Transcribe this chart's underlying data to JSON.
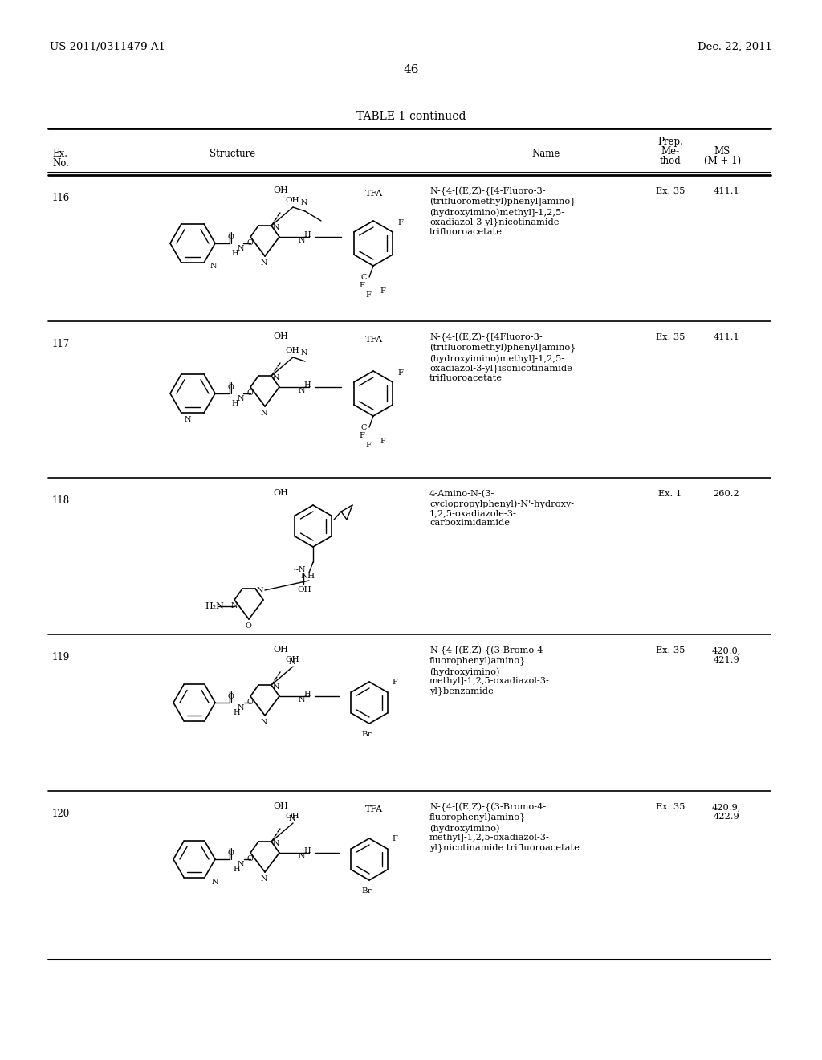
{
  "page_header_left": "US 2011/0311479 A1",
  "page_header_right": "Dec. 22, 2011",
  "page_number": "46",
  "table_title": "TABLE 1-continued",
  "col_headers": {
    "ex_no": "Ex.\nNo.",
    "structure": "Structure",
    "name": "Name",
    "prep_method_line1": "Prep.",
    "prep_method_line2": "Me-",
    "prep_method_line3": "thod",
    "ms_line1": "MS",
    "ms_line2": "(M + 1)"
  },
  "rows": [
    {
      "ex_no": "116",
      "name": "N-{4-[(E,Z)-{[4-Fluoro-3-\n(trifluoromethyl)phenyl]amino}\n(hydroxyimino)methyl]-1,2,5-\noxadiazol-3-yl}nicotinamide\ntrifluoroacetate",
      "tfa_label": "TFA",
      "oh_label": "OH",
      "prep_method": "Ex. 35",
      "ms": "411.1"
    },
    {
      "ex_no": "117",
      "name": "N-{4-[(E,Z)-{[4Fluoro-3-\n(trifluoromethyl)phenyl]amino}\n(hydroxyimino)methyl]-1,2,5-\noxadiazol-3-yl}isonicotinamide\ntrifluoroacetate",
      "tfa_label": "TFA",
      "oh_label": "OH",
      "prep_method": "Ex. 35",
      "ms": "411.1"
    },
    {
      "ex_no": "118",
      "name": "4-Amino-N-(3-\ncyclopropylphenyl)-N'-hydroxy-\n1,2,5-oxadiazole-3-\ncarboximidamide",
      "tfa_label": "",
      "oh_label": "OH",
      "prep_method": "Ex. 1",
      "ms": "260.2"
    },
    {
      "ex_no": "119",
      "name": "N-{4-[(E,Z)-{(3-Bromo-4-\nfluorophenyl)amino}\n(hydroxyimino)\nmethyl]-1,2,5-oxadiazol-3-\nyl}benzamide",
      "tfa_label": "",
      "oh_label": "OH",
      "prep_method": "Ex. 35",
      "ms": "420.0,\n421.9"
    },
    {
      "ex_no": "120",
      "name": "N-{4-[(E,Z)-{(3-Bromo-4-\nfluorophenyl)amino}\n(hydroxyimino)\nmethyl]-1,2,5-oxadiazol-3-\nyl}nicotinamide trifluoroacetate",
      "tfa_label": "TFA",
      "oh_label": "OH",
      "prep_method": "Ex. 35",
      "ms": "420.9,\n422.9"
    }
  ],
  "bg_color": "#ffffff",
  "text_color": "#000000",
  "font_size_header": 9,
  "font_size_body": 8.5,
  "font_size_page": 9,
  "line_color": "#000000"
}
